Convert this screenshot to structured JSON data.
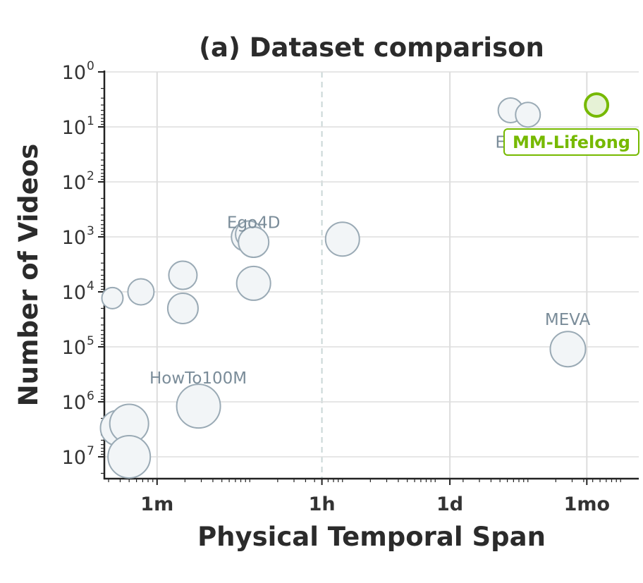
{
  "chart_data": {
    "type": "scatter",
    "title": "(a) Dataset comparison",
    "xlabel": "Physical Temporal Span",
    "ylabel": "Number of Videos",
    "x_scale": "log",
    "y_scale": "log",
    "y_inverted": true,
    "x_unit": "minutes",
    "xlim": [
      0.27,
      157000
    ],
    "ylim": [
      1,
      25000000
    ],
    "x_ticks": [
      {
        "value": 1,
        "label": "1m"
      },
      {
        "value": 60,
        "label": "1h"
      },
      {
        "value": 1440,
        "label": "1d"
      },
      {
        "value": 43200,
        "label": "1mo"
      }
    ],
    "y_ticks": [
      {
        "value": 1,
        "base": "10",
        "exp": "0"
      },
      {
        "value": 10,
        "base": "10",
        "exp": "1"
      },
      {
        "value": 100,
        "base": "10",
        "exp": "2"
      },
      {
        "value": 1000,
        "base": "10",
        "exp": "3"
      },
      {
        "value": 10000,
        "base": "10",
        "exp": "4"
      },
      {
        "value": 100000,
        "base": "10",
        "exp": "5"
      },
      {
        "value": 1000000,
        "base": "10",
        "exp": "6"
      },
      {
        "value": 10000000,
        "base": "10",
        "exp": "7"
      }
    ],
    "grid": true,
    "reference_line_x": 60,
    "points": [
      {
        "x": 0.33,
        "y": 13000,
        "size": 1,
        "label": ""
      },
      {
        "x": 0.38,
        "y": 3000000,
        "size": 3,
        "label": ""
      },
      {
        "x": 0.5,
        "y": 2500000,
        "size": 3.5,
        "label": ""
      },
      {
        "x": 0.5,
        "y": 10000000,
        "size": 4,
        "label": ""
      },
      {
        "x": 0.67,
        "y": 10000,
        "size": 1.7,
        "label": ""
      },
      {
        "x": 1.9,
        "y": 5000,
        "size": 2,
        "label": ""
      },
      {
        "x": 1.9,
        "y": 20000,
        "size": 2.3,
        "label": ""
      },
      {
        "x": 2.8,
        "y": 1200000,
        "size": 4.2,
        "label": "HowTo100M"
      },
      {
        "x": 9.0,
        "y": 1000,
        "size": 2,
        "label": ""
      },
      {
        "x": 9.8,
        "y": 900,
        "size": 1.8,
        "label": ""
      },
      {
        "x": 11.0,
        "y": 1250,
        "size": 2.3,
        "label": "Ego4D"
      },
      {
        "x": 11.0,
        "y": 7000,
        "size": 2.8,
        "label": ""
      },
      {
        "x": 100,
        "y": 1100,
        "size": 2.8,
        "label": ""
      },
      {
        "x": 6500,
        "y": 5,
        "size": 1.5,
        "label": "Ego"
      },
      {
        "x": 10000,
        "y": 6,
        "size": 1.5,
        "label": ""
      },
      {
        "x": 27000,
        "y": 110000,
        "size": 3,
        "label": "MEVA"
      }
    ],
    "highlight": {
      "x": 55000,
      "y": 4,
      "label": "MM-Lifelong",
      "color": "#76b900"
    }
  }
}
